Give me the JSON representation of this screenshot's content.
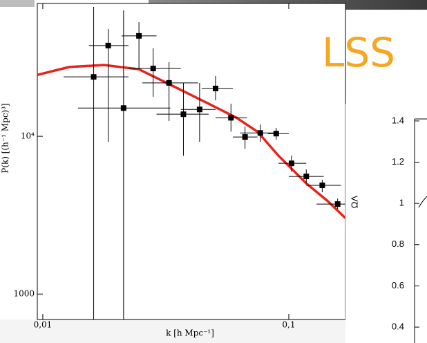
{
  "chart_data": [
    {
      "type": "scatter",
      "annotation": "LSS",
      "annotation_color": "#f5a623",
      "x_label": "k [h Mpc⁻¹]",
      "y_label": "P(k) [(h⁻¹ Mpc)³]",
      "log_x": true,
      "log_y": true,
      "xlim": [
        0.0095,
        0.17
      ],
      "ylim": [
        690,
        69500
      ],
      "xticks": [
        {
          "value": 0.01,
          "label": "0,01"
        },
        {
          "value": 0.1,
          "label": "0,1"
        }
      ],
      "yticks": [
        1000,
        {
          "value": 10000,
          "label": "10⁴"
        }
      ],
      "color": "#000000",
      "x": [
        0.0161,
        0.01845,
        0.0213,
        0.0246,
        0.0281,
        0.0326,
        0.0373,
        0.0434,
        0.0504,
        0.0582,
        0.0664,
        0.0766,
        0.0889,
        0.1026,
        0.1178,
        0.1368,
        0.158
      ],
      "values": [
        23800,
        37600,
        15100,
        43300,
        26900,
        21800,
        13800,
        14800,
        20100,
        13100,
        9900,
        10500,
        10400,
        6740,
        5570,
        4890,
        3720
      ],
      "x_lo": [
        0.01216,
        0.0154,
        0.0139,
        0.0209,
        0.0223,
        0.0254,
        0.029,
        0.0364,
        0.0443,
        0.0504,
        0.0593,
        0.0634,
        0.0822,
        0.0908,
        0.1,
        0.1178,
        0.1297
      ],
      "x_hi": [
        0.0223,
        0.0223,
        0.033,
        0.029,
        0.0364,
        0.0428,
        0.0472,
        0.0504,
        0.0593,
        0.0676,
        0.0746,
        0.0908,
        0.1,
        0.1178,
        0.1387,
        0.163,
        0.17
      ],
      "y_lo": [
        690,
        9230,
        690,
        26600,
        17800,
        12500,
        7540,
        9230,
        16900,
        10700,
        8340,
        9230,
        9510,
        5970,
        5030,
        4420,
        3460
      ],
      "y_hi": [
        66100,
        47900,
        62800,
        52900,
        36100,
        29500,
        21800,
        21800,
        24100,
        16100,
        11500,
        11900,
        11300,
        7540,
        6160,
        5300,
        4030
      ],
      "curve": {
        "color": "#e8231a",
        "x": [
          0.0095,
          0.0128,
          0.01774,
          0.0246,
          0.0341,
          0.0472,
          0.0613,
          0.0746,
          0.0908,
          0.1178,
          0.1432,
          0.17
        ],
        "values": [
          24500,
          27500,
          28300,
          26600,
          20700,
          16100,
          13100,
          10700,
          7540,
          5030,
          3910,
          3030
        ]
      }
    },
    {
      "type": "line",
      "y_label": "ΩΛ",
      "ylim": [
        0.323,
        1.45
      ],
      "yticks": [
        1.4,
        1.2,
        1,
        0.8,
        0.6,
        0.4
      ]
    }
  ]
}
